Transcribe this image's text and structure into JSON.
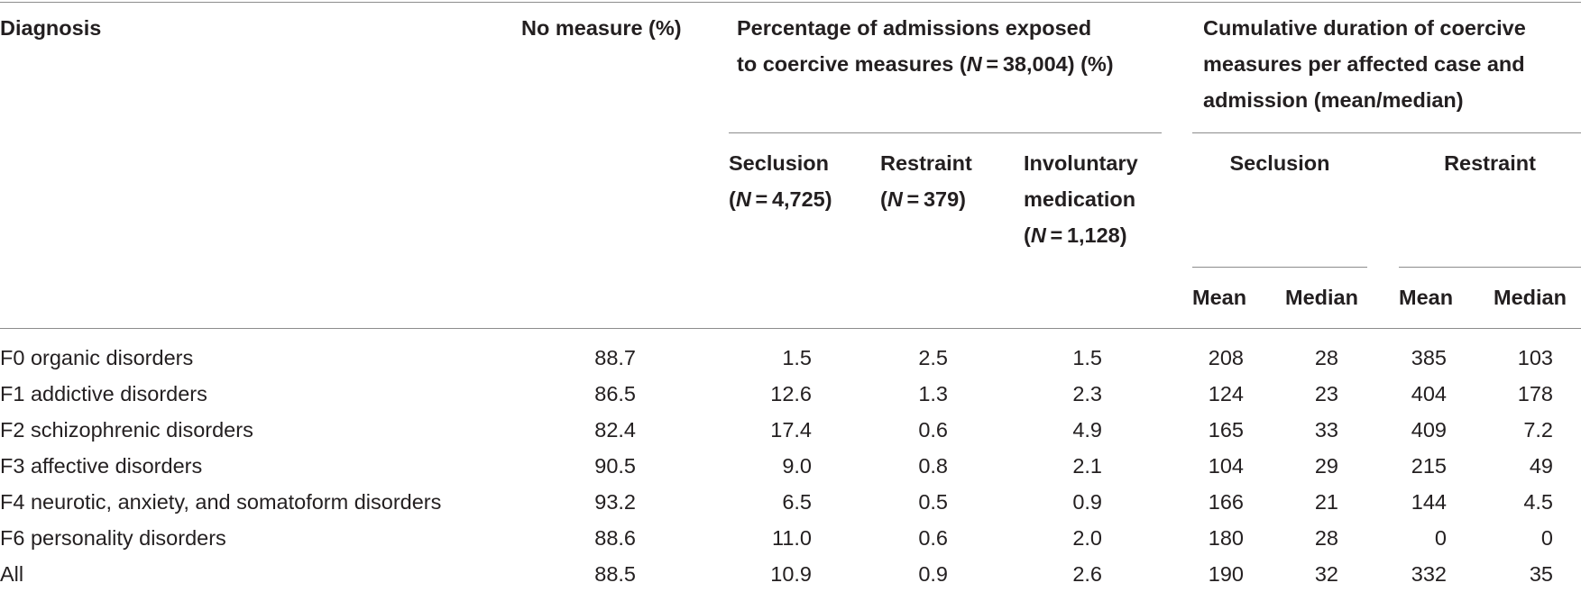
{
  "table": {
    "headers": {
      "diagnosis": "Diagnosis",
      "no_measure": "No measure (%)",
      "percentage_group": [
        "Percentage of admissions exposed",
        "to coercive measures (N = 38,004) (%)"
      ],
      "duration_group": [
        "Cumulative duration of coercive",
        "measures per affected case and",
        "admission (mean/median)"
      ],
      "seclusion_pct": [
        "Seclusion",
        "(N = 4,725)"
      ],
      "restraint_pct": [
        "Restraint",
        "(N = 379)"
      ],
      "involuntary_pct": [
        "Involuntary",
        "medication",
        "(N = 1,128)"
      ],
      "seclusion_dur": "Seclusion",
      "restraint_dur": "Restraint",
      "mean": "Mean",
      "median": "Median"
    },
    "rows": [
      {
        "diagnosis": "F0 organic disorders",
        "no_measure": "88.7",
        "seclusion": "1.5",
        "restraint": "2.5",
        "involuntary": "1.5",
        "sec_mean": "208",
        "sec_median": "28",
        "res_mean": "385",
        "res_median": "103"
      },
      {
        "diagnosis": "F1 addictive disorders",
        "no_measure": "86.5",
        "seclusion": "12.6",
        "restraint": "1.3",
        "involuntary": "2.3",
        "sec_mean": "124",
        "sec_median": "23",
        "res_mean": "404",
        "res_median": "178"
      },
      {
        "diagnosis": "F2 schizophrenic disorders",
        "no_measure": "82.4",
        "seclusion": "17.4",
        "restraint": "0.6",
        "involuntary": "4.9",
        "sec_mean": "165",
        "sec_median": "33",
        "res_mean": "409",
        "res_median": "7.2"
      },
      {
        "diagnosis": "F3 affective disorders",
        "no_measure": "90.5",
        "seclusion": "9.0",
        "restraint": "0.8",
        "involuntary": "2.1",
        "sec_mean": "104",
        "sec_median": "29",
        "res_mean": "215",
        "res_median": "49"
      },
      {
        "diagnosis": "F4 neurotic, anxiety, and somatoform disorders",
        "no_measure": "93.2",
        "seclusion": "6.5",
        "restraint": "0.5",
        "involuntary": "0.9",
        "sec_mean": "166",
        "sec_median": "21",
        "res_mean": "144",
        "res_median": "4.5"
      },
      {
        "diagnosis": "F6 personality disorders",
        "no_measure": "88.6",
        "seclusion": "11.0",
        "restraint": "0.6",
        "involuntary": "2.0",
        "sec_mean": "180",
        "sec_median": "28",
        "res_mean": "0",
        "res_median": "0"
      },
      {
        "diagnosis": "All",
        "no_measure": "88.5",
        "seclusion": "10.9",
        "restraint": "0.9",
        "involuntary": "2.6",
        "sec_mean": "190",
        "sec_median": "32",
        "res_mean": "332",
        "res_median": "35"
      }
    ]
  }
}
